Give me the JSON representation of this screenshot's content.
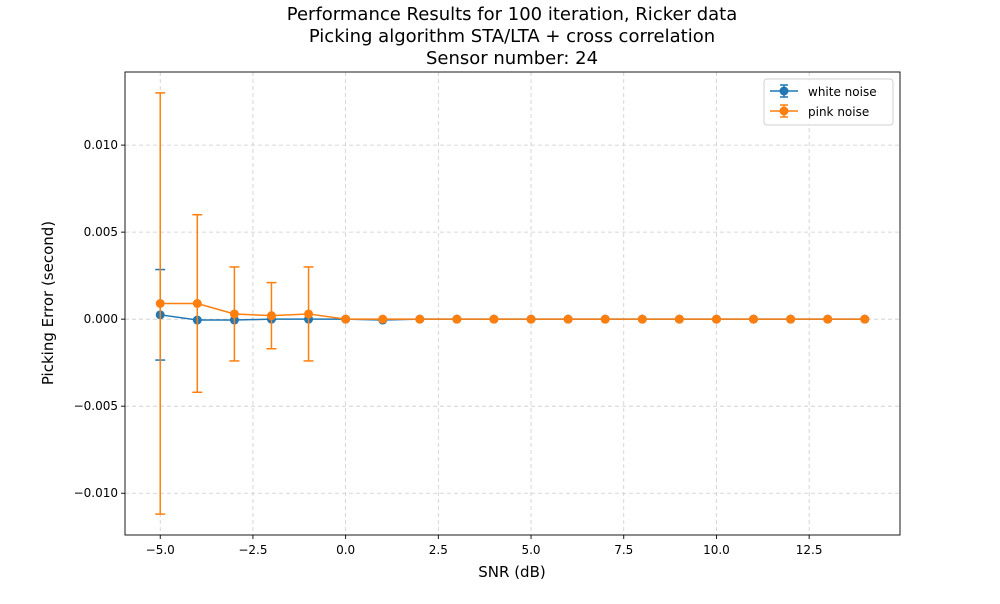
{
  "chart_data": {
    "type": "line",
    "title": [
      "Performance Results for 100 iteration, Ricker data",
      "Picking algorithm STA/LTA + cross correlation",
      "Sensor number: 24"
    ],
    "xlabel": "SNR (dB)",
    "ylabel": "Picking Error (second)",
    "xlim": [
      -5.95,
      14.95
    ],
    "ylim": [
      -0.0124,
      0.0142
    ],
    "x_ticks": [
      -5.0,
      -2.5,
      0.0,
      2.5,
      5.0,
      7.5,
      10.0,
      12.5
    ],
    "x_tick_labels": [
      "−5.0",
      "−2.5",
      "0.0",
      "2.5",
      "5.0",
      "7.5",
      "10.0",
      "12.5"
    ],
    "y_ticks": [
      -0.01,
      -0.005,
      0.0,
      0.005,
      0.01
    ],
    "y_tick_labels": [
      "−0.010",
      "−0.005",
      "0.000",
      "0.005",
      "0.010"
    ],
    "grid": true,
    "legend_position": "top-right",
    "x": [
      -5,
      -4,
      -3,
      -2,
      -1,
      0,
      1,
      2,
      3,
      4,
      5,
      6,
      7,
      8,
      9,
      10,
      11,
      12,
      13,
      14
    ],
    "series": [
      {
        "name": "white noise",
        "color": "#1f77b4",
        "values": [
          0.00025,
          -5e-05,
          -5e-05,
          0.0,
          0.0,
          0.0,
          -5e-05,
          0.0,
          0.0,
          0.0,
          0.0,
          0.0,
          0.0,
          0.0,
          0.0,
          0.0,
          0.0,
          0.0,
          0.0,
          0.0
        ],
        "errors": [
          0.0026,
          0.0,
          0.0,
          0.0,
          0.0,
          0.0,
          0.0,
          0.0,
          0.0,
          0.0,
          0.0,
          0.0,
          0.0,
          0.0,
          0.0,
          0.0,
          0.0,
          0.0,
          0.0,
          0.0
        ]
      },
      {
        "name": "pink noise",
        "color": "#ff7f0e",
        "values": [
          0.0009,
          0.0009,
          0.0003,
          0.0002,
          0.0003,
          0.0,
          0.0,
          0.0,
          0.0,
          0.0,
          0.0,
          0.0,
          0.0,
          0.0,
          0.0,
          0.0,
          0.0,
          0.0,
          0.0,
          0.0
        ],
        "errors": [
          0.0121,
          0.0051,
          0.0027,
          0.0019,
          0.0027,
          0.0,
          0.0,
          0.0,
          0.0,
          0.0,
          0.0,
          0.0,
          0.0,
          0.0,
          0.0,
          0.0,
          0.0,
          0.0,
          0.0,
          0.0
        ]
      }
    ]
  }
}
